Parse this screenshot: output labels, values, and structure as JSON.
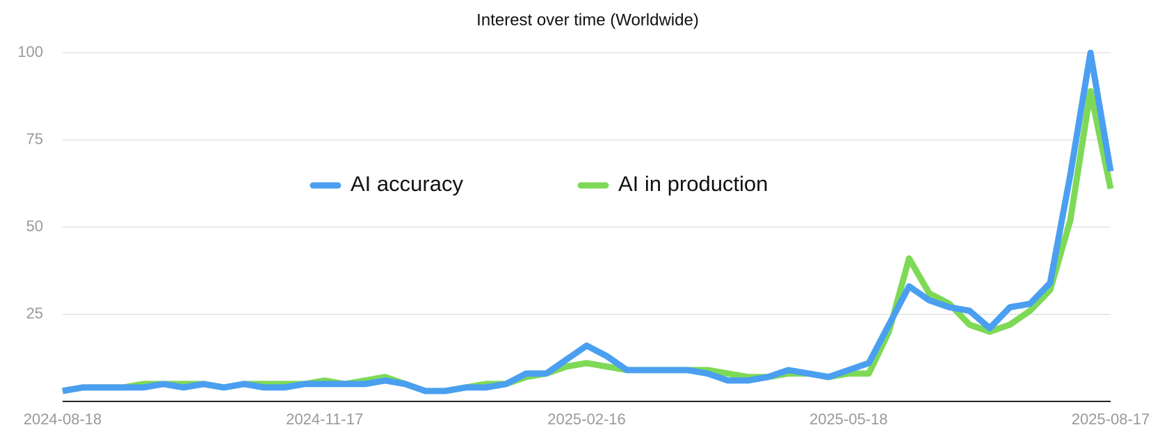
{
  "chart_data": {
    "type": "line",
    "title": "Interest over time (Worldwide)",
    "categories": [
      "2024-08-18",
      null,
      null,
      null,
      null,
      null,
      null,
      null,
      null,
      null,
      null,
      null,
      null,
      "2024-11-17",
      null,
      null,
      null,
      null,
      null,
      null,
      null,
      null,
      null,
      null,
      null,
      null,
      "2025-02-16",
      null,
      null,
      null,
      null,
      null,
      null,
      null,
      null,
      null,
      null,
      null,
      null,
      "2025-05-18",
      null,
      null,
      null,
      null,
      null,
      null,
      null,
      null,
      null,
      null,
      null,
      null,
      "2025-08-17"
    ],
    "series": [
      {
        "name": "AI accuracy",
        "color": "#4a9ff0",
        "values": [
          3,
          4,
          4,
          4,
          4,
          5,
          4,
          5,
          4,
          5,
          4,
          4,
          5,
          5,
          5,
          5,
          6,
          5,
          3,
          3,
          4,
          4,
          5,
          8,
          8,
          12,
          16,
          13,
          9,
          9,
          9,
          9,
          8,
          6,
          6,
          7,
          9,
          8,
          7,
          9,
          11,
          22,
          33,
          29,
          27,
          26,
          21,
          27,
          28,
          34,
          65,
          100,
          66
        ]
      },
      {
        "name": "AI in production",
        "color": "#7ed957",
        "values": [
          3,
          4,
          4,
          4,
          5,
          5,
          5,
          5,
          4,
          5,
          5,
          5,
          5,
          6,
          5,
          6,
          7,
          5,
          3,
          3,
          4,
          5,
          5,
          7,
          8,
          10,
          11,
          10,
          9,
          9,
          9,
          9,
          9,
          8,
          7,
          7,
          8,
          8,
          7,
          8,
          8,
          20,
          41,
          31,
          28,
          22,
          20,
          22,
          26,
          32,
          52,
          89,
          61
        ]
      }
    ],
    "ylim": [
      0,
      100
    ],
    "yticks": [
      25,
      50,
      75,
      100
    ],
    "grid": true,
    "legend": "center"
  }
}
